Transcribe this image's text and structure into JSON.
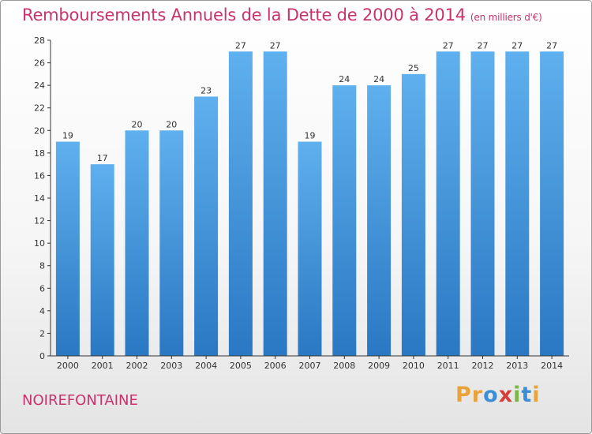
{
  "chart_data": {
    "type": "bar",
    "title": "Remboursements Annuels de la Dette de 2000 à 2014",
    "subtitle": "(en milliers d'€)",
    "categories": [
      "2000",
      "2001",
      "2002",
      "2003",
      "2004",
      "2005",
      "2006",
      "2007",
      "2008",
      "2009",
      "2010",
      "2011",
      "2012",
      "2013",
      "2014"
    ],
    "values": [
      19,
      17,
      20,
      20,
      23,
      27,
      27,
      19,
      24,
      24,
      25,
      27,
      27,
      27,
      27
    ],
    "xlabel": "",
    "ylabel": "",
    "ylim": [
      0,
      28
    ],
    "yticks": [
      0,
      2,
      4,
      6,
      8,
      10,
      12,
      14,
      16,
      18,
      20,
      22,
      24,
      26,
      28
    ],
    "grid": false,
    "bar_color": "#3d96de"
  },
  "commune": "NOIREFONTAINE",
  "logo": {
    "letters": [
      "P",
      "r",
      "o",
      "x",
      "i",
      "t",
      "i"
    ],
    "colors": [
      "#e8a33a",
      "#e8a33a",
      "#3c8fd6",
      "#d43f3a",
      "#7ab648",
      "#3c8fd6",
      "#e8a33a"
    ]
  },
  "colors": {
    "title": "#c8336d",
    "axis": "#333333"
  }
}
